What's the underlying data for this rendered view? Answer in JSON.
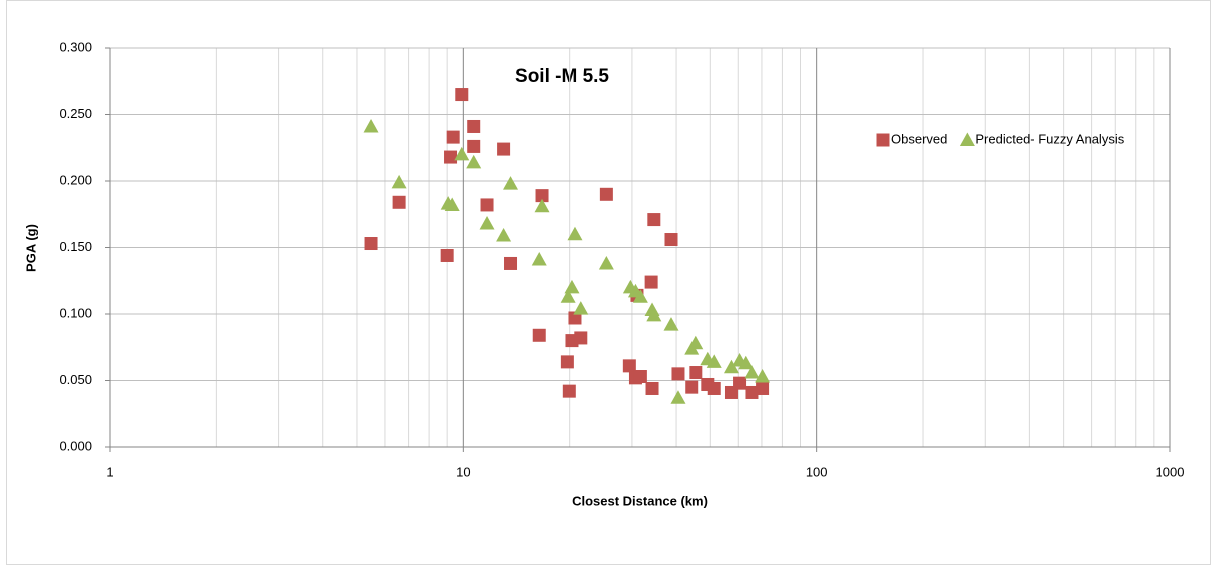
{
  "chart_data": {
    "type": "scatter",
    "title": "Soil -M 5.5",
    "x_label": "Closest Distance (km)",
    "y_label": "PGA (g)",
    "x_log": true,
    "grid": true,
    "x_minor_grid": true,
    "legend_position": "top-right",
    "xlim": [
      1,
      1000
    ],
    "xticks": [
      1,
      10,
      100,
      1000
    ],
    "ylim": [
      0,
      0.3
    ],
    "yticks": [
      {
        "value": 0,
        "label": "0.000"
      },
      {
        "value": 0.05,
        "label": "0.050"
      },
      {
        "value": 0.1,
        "label": "0.100"
      },
      {
        "value": 0.15,
        "label": "0.150"
      },
      {
        "value": 0.2,
        "label": "0.200"
      },
      {
        "value": 0.25,
        "label": "0.250"
      },
      {
        "value": 0.3,
        "label": "0.300"
      }
    ],
    "series": [
      {
        "name": "Observed",
        "color": "#c0504d",
        "marker": "square",
        "x": [
          5.48,
          6.58,
          9.0,
          9.2,
          9.36,
          9.9,
          10.7,
          10.7,
          11.67,
          13.0,
          13.6,
          16.4,
          16.7,
          19.7,
          19.95,
          20.3,
          20.7,
          21.5,
          25.4,
          29.5,
          30.7,
          31.0,
          31.7,
          34.0,
          34.6,
          34.2,
          38.7,
          40.5,
          44.3,
          45.5,
          49.2,
          51.3,
          57.4,
          60.5,
          65.6,
          70.3
        ],
        "values": [
          0.153,
          0.184,
          0.144,
          0.218,
          0.233,
          0.265,
          0.241,
          0.226,
          0.182,
          0.224,
          0.138,
          0.084,
          0.189,
          0.064,
          0.042,
          0.08,
          0.097,
          0.082,
          0.19,
          0.061,
          0.052,
          0.114,
          0.053,
          0.124,
          0.171,
          0.044,
          0.156,
          0.055,
          0.045,
          0.056,
          0.047,
          0.044,
          0.041,
          0.048,
          0.041,
          0.044
        ]
      },
      {
        "name": "Predicted- Fuzzy Analysis",
        "color": "#9bbb59",
        "marker": "triangle",
        "x": [
          5.48,
          6.58,
          9.06,
          9.3,
          9.9,
          10.7,
          11.67,
          13.0,
          13.6,
          16.4,
          16.7,
          19.8,
          20.3,
          20.7,
          21.5,
          25.4,
          29.7,
          30.7,
          31.7,
          34.2,
          34.6,
          38.7,
          40.5,
          44.3,
          45.5,
          49.2,
          51.3,
          57.4,
          60.5,
          63.0,
          65.6,
          70.3
        ],
        "values": [
          0.241,
          0.199,
          0.183,
          0.182,
          0.22,
          0.214,
          0.168,
          0.159,
          0.198,
          0.141,
          0.181,
          0.113,
          0.12,
          0.16,
          0.104,
          0.138,
          0.12,
          0.117,
          0.113,
          0.103,
          0.099,
          0.092,
          0.037,
          0.074,
          0.078,
          0.066,
          0.064,
          0.06,
          0.065,
          0.063,
          0.056,
          0.053
        ]
      }
    ]
  }
}
